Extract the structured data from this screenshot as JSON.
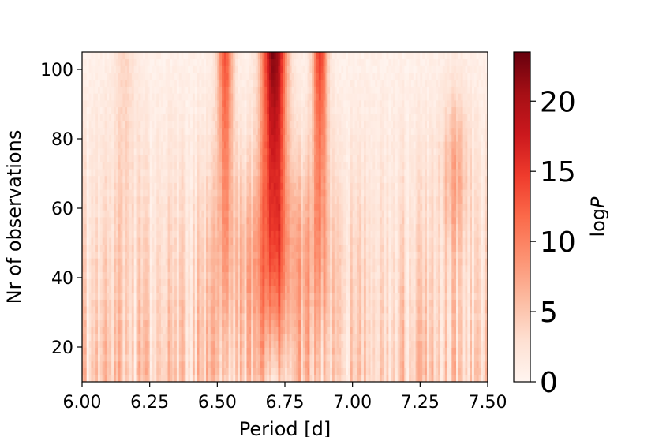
{
  "chart_data": {
    "type": "heatmap",
    "title": "",
    "xlabel": "Period [d]",
    "ylabel": "Nr of observations",
    "xlim": [
      6.0,
      7.5
    ],
    "ylim": [
      10,
      105
    ],
    "x_ticks": [
      "6.00",
      "6.25",
      "6.50",
      "6.75",
      "7.00",
      "7.25",
      "7.50"
    ],
    "y_ticks": [
      "20",
      "40",
      "60",
      "80",
      "100"
    ],
    "colorbar": {
      "label_prefix": "log",
      "label_var": "P",
      "range": [
        0,
        23.5
      ],
      "ticks": [
        "0",
        "5",
        "10",
        "15",
        "20"
      ],
      "colormap": "Reds",
      "colors": [
        "#fff5f0",
        "#fee0d2",
        "#fcbba1",
        "#fc9272",
        "#fb6a4a",
        "#ef3b2c",
        "#cb181d",
        "#a50f15",
        "#67000d"
      ]
    },
    "peaks_period": [
      6.53,
      6.71,
      6.88
    ],
    "grid": false
  }
}
